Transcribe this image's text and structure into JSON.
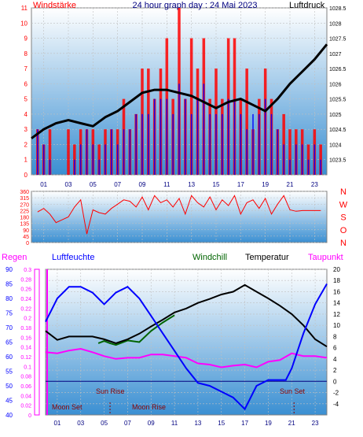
{
  "colors": {
    "background": "#ffffff",
    "plot_top": "#ffffff",
    "plot_bottom": "#3a8fd2",
    "wind": "#ff0000",
    "gust": "#ff0000",
    "wind_blue": "#0000ff",
    "pressure": "#000000",
    "direction": "#ff0000",
    "humidity": "#0000ff",
    "temperature": "#000000",
    "windchill": "#006400",
    "dewpoint": "#ff00ff",
    "rain": "#ff00ff",
    "sunline": "#000080",
    "event_text": "#8b0000",
    "title": "#000080"
  },
  "header": {
    "left_label": "Windstärke",
    "title": "24 hour graph day : 24 Mai 2023",
    "right_label": "Luftdruck"
  },
  "legend": {
    "regen": "Regen",
    "luftfeuchte": "Luftfeuchte",
    "windchill": "Windchill",
    "temperatur": "Temperatur",
    "taupunkt": "Taupunkt"
  },
  "events": {
    "sun_rise": "Sun Rise",
    "sun_set": "Sun Set",
    "moon_set": "Moon Set",
    "moon_rise": "Moon Rise"
  },
  "chart_data": [
    {
      "type": "bar",
      "name": "wind",
      "x_ticks": [
        "01",
        "03",
        "05",
        "07",
        "09",
        "11",
        "13",
        "15",
        "17",
        "19",
        "21",
        "23"
      ],
      "xlim": [
        0,
        24
      ],
      "ylim_left": [
        0,
        11
      ],
      "y_ticks_left": [
        "0",
        "1",
        "2",
        "3",
        "4",
        "5",
        "6",
        "7",
        "8",
        "9",
        "10",
        "11"
      ],
      "ylim_right": [
        1023,
        1028.5
      ],
      "y_ticks_right": [
        "1023.5",
        "1024",
        "1024.5",
        "1025",
        "1025.5",
        "1026",
        "1026.5",
        "1027",
        "1027.5",
        "1028",
        "1028.5"
      ],
      "series": [
        {
          "name": "Windstärke",
          "x": [
            0.5,
            1.0,
            1.5,
            2.0,
            2.5,
            3.0,
            3.5,
            4.0,
            4.5,
            5.0,
            5.5,
            6.0,
            6.5,
            7.0,
            7.5,
            8.0,
            8.5,
            9.0,
            9.5,
            10.0,
            10.5,
            11.0,
            11.5,
            12.0,
            12.5,
            13.0,
            13.5,
            14.0,
            14.5,
            15.0,
            15.5,
            16.0,
            16.5,
            17.0,
            17.5,
            18.0,
            18.5,
            19.0,
            19.5,
            20.0,
            20.5,
            21.0,
            21.5,
            22.0,
            22.5,
            23.0,
            23.5
          ],
          "values": [
            3,
            2,
            1,
            0,
            0,
            0,
            1,
            2,
            3,
            2,
            1,
            2,
            3,
            2,
            3,
            3,
            4,
            4,
            4,
            5,
            5,
            5,
            4,
            6,
            5,
            4,
            5,
            6,
            4,
            4,
            4,
            5,
            5,
            4,
            3,
            4,
            4,
            5,
            4,
            3,
            2,
            1,
            2,
            2,
            1,
            2,
            1
          ],
          "gusts": [
            3,
            2,
            3,
            0,
            0,
            3,
            2,
            3,
            3,
            3,
            2,
            3,
            3,
            3,
            5,
            3,
            4,
            7,
            7,
            5,
            7,
            9,
            5,
            11,
            5,
            9,
            7,
            9,
            5,
            7,
            5,
            9,
            9,
            5,
            7,
            3,
            5,
            7,
            5,
            3,
            4,
            3,
            3,
            3,
            2,
            3,
            2
          ]
        },
        {
          "name": "Luftdruck",
          "x": [
            0,
            1,
            2,
            3,
            4,
            5,
            6,
            7,
            8,
            9,
            10,
            11,
            12,
            13,
            14,
            15,
            16,
            17,
            18,
            19,
            20,
            21,
            22,
            23,
            24
          ],
          "values": [
            1024.2,
            1024.5,
            1024.7,
            1024.8,
            1024.7,
            1024.6,
            1024.9,
            1025.1,
            1025.4,
            1025.7,
            1025.8,
            1025.8,
            1025.7,
            1025.6,
            1025.4,
            1025.2,
            1025.4,
            1025.5,
            1025.3,
            1025.1,
            1025.5,
            1026.0,
            1026.4,
            1026.8,
            1027.3
          ]
        }
      ]
    },
    {
      "type": "line",
      "name": "direction",
      "x_ticks": [
        "01",
        "03",
        "05",
        "07",
        "09",
        "11",
        "13",
        "15",
        "17",
        "19",
        "21",
        "23"
      ],
      "xlim": [
        0,
        24
      ],
      "ylim": [
        0,
        360
      ],
      "y_ticks": [
        "0",
        "45",
        "90",
        "135",
        "180",
        "225",
        "270",
        "315",
        "360"
      ],
      "compass": [
        "N",
        "W",
        "S",
        "O",
        "N"
      ],
      "series": [
        {
          "name": "Windrichtung",
          "x": [
            0.5,
            1,
            1.5,
            2,
            2.5,
            3,
            3.5,
            4,
            4.5,
            5,
            5.5,
            6,
            6.5,
            7,
            7.5,
            8,
            8.5,
            9,
            9.5,
            10,
            10.5,
            11,
            11.5,
            12,
            12.5,
            13,
            13.5,
            14,
            14.5,
            15,
            15.5,
            16,
            16.5,
            17,
            17.5,
            18,
            18.5,
            19,
            19.5,
            20,
            20.5,
            21,
            21.5,
            22,
            22.5,
            23,
            23.5
          ],
          "values": [
            215,
            240,
            200,
            140,
            160,
            180,
            250,
            300,
            60,
            230,
            210,
            200,
            240,
            270,
            300,
            290,
            250,
            320,
            230,
            330,
            280,
            300,
            250,
            310,
            200,
            330,
            280,
            250,
            320,
            230,
            300,
            260,
            330,
            200,
            280,
            300,
            240,
            310,
            200,
            270,
            330,
            230,
            220,
            225,
            225,
            225,
            225
          ]
        }
      ]
    },
    {
      "type": "line",
      "name": "climate",
      "x_ticks": [
        "01",
        "03",
        "05",
        "07",
        "09",
        "11",
        "13",
        "15",
        "17",
        "19",
        "21",
        "23"
      ],
      "xlim": [
        0,
        24
      ],
      "ylim_humidity": [
        40,
        90
      ],
      "y_ticks_humidity": [
        "40",
        "45",
        "50",
        "55",
        "60",
        "65",
        "70",
        "75",
        "80",
        "85",
        "90"
      ],
      "ylim_rain": [
        0,
        0.3
      ],
      "y_ticks_rain": [
        "0",
        "0.02",
        "0.04",
        "0.06",
        "0.08",
        "0.1",
        "0.12",
        "0.14",
        "0.16",
        "0.18",
        "0.2",
        "0.22",
        "0.24",
        "0.26",
        "0.28",
        "0.3"
      ],
      "ylim_temperature": [
        -6,
        20
      ],
      "y_ticks_temperature": [
        "-4",
        "-2",
        "0",
        "2",
        "4",
        "6",
        "8",
        "10",
        "12",
        "14",
        "16",
        "18",
        "20"
      ],
      "series": [
        {
          "name": "Luftfeuchte",
          "x": [
            0,
            0.5,
            1,
            2,
            3,
            4,
            5,
            6,
            7,
            8,
            9,
            10,
            11,
            12,
            13,
            14,
            15,
            16,
            17,
            18,
            19,
            20,
            20.5,
            21,
            22,
            23,
            24
          ],
          "values": [
            72,
            76,
            80,
            84,
            84,
            82,
            78,
            82,
            84,
            80,
            74,
            68,
            62,
            56,
            51,
            50,
            48,
            46,
            42,
            50,
            52,
            52,
            52,
            56,
            68,
            78,
            85
          ]
        },
        {
          "name": "Temperatur",
          "x": [
            0,
            1,
            2,
            3,
            4,
            5,
            6,
            7,
            8,
            9,
            10,
            11,
            12,
            13,
            14,
            15,
            16,
            17,
            18,
            19,
            20,
            21,
            22,
            23,
            24
          ],
          "values": [
            9,
            7.4,
            8.0,
            8.0,
            8.0,
            7.5,
            6.8,
            7.5,
            8.5,
            9.8,
            11.0,
            12.3,
            13.0,
            14.0,
            14.7,
            15.5,
            16.0,
            17.2,
            16.0,
            14.8,
            13.5,
            12.0,
            10.0,
            7.5,
            6.2
          ]
        },
        {
          "name": "Windchill",
          "x": [
            4.5,
            5,
            5.5,
            6,
            7,
            8,
            9,
            10,
            11
          ],
          "values": [
            6.8,
            7.2,
            6.8,
            6.5,
            7.3,
            7.0,
            9.0,
            10.5,
            11.8
          ]
        },
        {
          "name": "Taupunkt",
          "x": [
            0,
            1,
            2,
            3,
            4,
            5,
            6,
            7,
            8,
            9,
            10,
            11,
            12,
            13,
            14,
            15,
            16,
            17,
            18,
            19,
            20,
            21,
            22,
            23,
            24
          ],
          "values": [
            5.2,
            5.0,
            5.5,
            5.8,
            5.2,
            4.5,
            4.0,
            4.2,
            4.2,
            4.8,
            4.8,
            4.5,
            4.2,
            3.2,
            3.0,
            2.5,
            2.8,
            3.0,
            2.5,
            3.5,
            3.8,
            5.0,
            4.5,
            4.5,
            4.2
          ]
        },
        {
          "name": "Regen",
          "x": [
            0,
            24
          ],
          "values": [
            0,
            0
          ]
        }
      ],
      "sun_rise_hour": 5.5,
      "sun_set_hour": 21.2,
      "moon_set_hour": 0.5,
      "moon_rise_hour": 5.5
    }
  ]
}
